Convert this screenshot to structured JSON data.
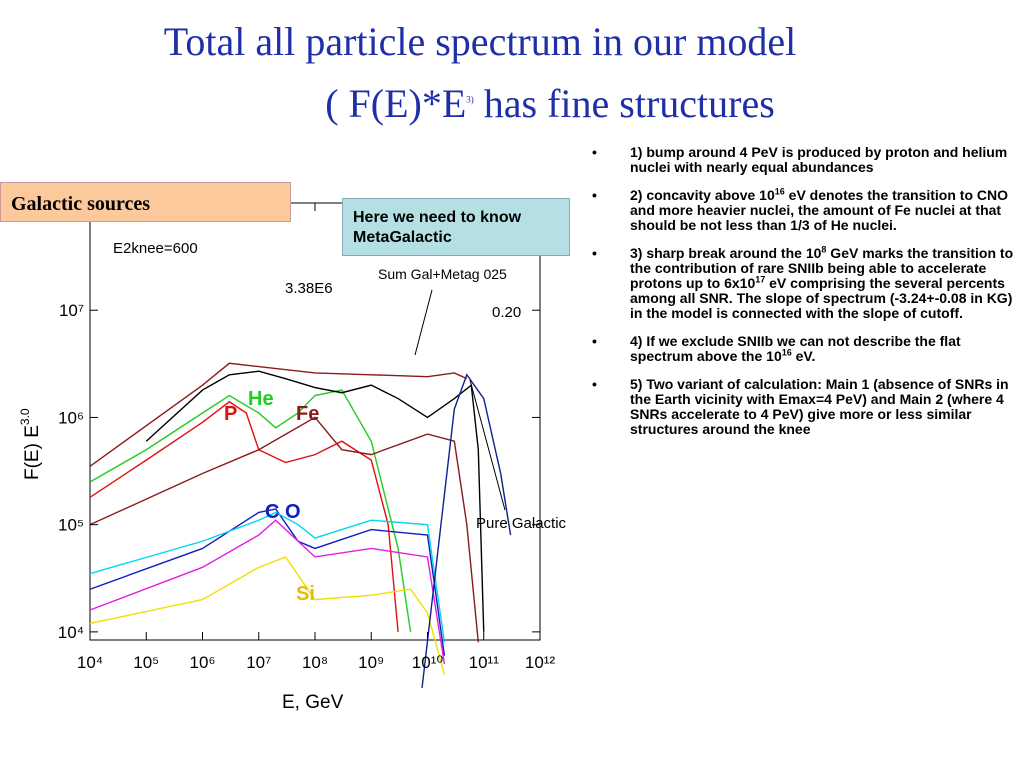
{
  "header": {
    "title_line1": "Total all particle spectrum in our model",
    "title_line2": [
      "( F(E)*E",
      "3)",
      " has fine structures"
    ]
  },
  "callouts": {
    "galactic": "Galactic sources",
    "metagalactic": "Here we need to know MetaGalactic"
  },
  "bullets": [
    [
      "1) bump around 4 PeV  is produced by proton and helium nuclei with nearly equal abundances"
    ],
    [
      "  2) concavity above 10",
      "16",
      " eV denotes the transition to  CNO and more heavier nuclei, the amount of Fe nuclei at that should be not less than 1/3 of He nuclei."
    ],
    [
      "  3) sharp  break around the 10",
      "8",
      " GeV marks the transition to  the contribution of  rare SNIIb being able to accelerate protons up to 6x10",
      "17",
      " eV  comprising  the several percents among all SNR. The slope of spectrum (-3.24+-0.08 in KG) in the model is connected with the slope of cutoff."
    ],
    [
      "4) If we exclude SNIIb  we can not describe the flat spectrum  above the 10",
      "16",
      " eV."
    ],
    [
      "5) Two variant of calculation: Main 1 (absence of SNRs in the Earth vicinity with Emax=4 PeV) and Main 2 (where 4 SNRs accelerate to 4 PeV) give more or less  similar structures around the knee"
    ]
  ],
  "chart_data": {
    "type": "line",
    "xscale": "log",
    "yscale": "log",
    "xlabel": "E, GeV",
    "ylabel": [
      "F(E) E",
      "3.0"
    ],
    "annotations": {
      "e2knee": "E2knee=600",
      "norm": "3.38E6",
      "sum": "Sum Gal+Metag 025",
      "frac": "0.20",
      "pure": "Pure Galactic"
    },
    "xlim": [
      10000,
      1000000000000.0
    ],
    "ylim": [
      8400,
      100000000.0
    ],
    "xticks": [
      {
        "value": 10000.0,
        "label": "10⁴"
      },
      {
        "value": 100000.0,
        "label": "10⁵"
      },
      {
        "value": 1000000.0,
        "label": "10⁶"
      },
      {
        "value": 10000000.0,
        "label": "10⁷"
      },
      {
        "value": 100000000.0,
        "label": "10⁸"
      },
      {
        "value": 1000000000.0,
        "label": "10⁹"
      },
      {
        "value": 10000000000.0,
        "label": "10¹⁰"
      },
      {
        "value": 100000000000.0,
        "label": "10¹¹"
      },
      {
        "value": 1000000000000.0,
        "label": "10¹²"
      }
    ],
    "yticks": [
      {
        "value": 10000.0,
        "label": "10⁴"
      },
      {
        "value": 100000.0,
        "label": "10⁵"
      },
      {
        "value": 1000000.0,
        "label": "10⁶"
      },
      {
        "value": 10000000.0,
        "label": "10⁷"
      }
    ],
    "series": [
      {
        "name": "P",
        "color": "#e01010",
        "x": [
          10000.0,
          100000.0,
          1000000.0,
          3000000.0,
          6000000.0,
          10000000.0,
          30000000.0,
          100000000.0,
          300000000.0,
          1000000000.0,
          2000000000.0,
          3000000000.0
        ],
        "values": [
          180000.0,
          400000.0,
          900000.0,
          1400000.0,
          1100000.0,
          500000.0,
          380000.0,
          450000.0,
          600000.0,
          400000.0,
          100000.0,
          10000.0
        ]
      },
      {
        "name": "He",
        "color": "#22cc22",
        "x": [
          10000.0,
          100000.0,
          1000000.0,
          3000000.0,
          10000000.0,
          20000000.0,
          50000000.0,
          100000000.0,
          300000000.0,
          1000000000.0,
          3000000000.0,
          5000000000.0
        ],
        "values": [
          250000.0,
          500000.0,
          1100000.0,
          1600000.0,
          1100000.0,
          800000.0,
          1100000.0,
          1600000.0,
          1800000.0,
          600000.0,
          60000.0,
          10000.0
        ]
      },
      {
        "name": "Fe",
        "color": "#8b1a1a",
        "x": [
          10000.0,
          1000000.0,
          10000000.0,
          100000000.0,
          300000000.0,
          1000000000.0,
          10000000000.0,
          30000000000.0,
          50000000000.0,
          80000000000.0
        ],
        "values": [
          100000.0,
          300000.0,
          500000.0,
          1000000.0,
          500000.0,
          450000.0,
          700000.0,
          600000.0,
          100000.0,
          8000.0
        ]
      },
      {
        "name": "C O",
        "color": "#1020c0",
        "x": [
          10000.0,
          1000000.0,
          10000000.0,
          20000000.0,
          50000000.0,
          100000000.0,
          1000000000.0,
          10000000000.0,
          20000000000.0
        ],
        "values": [
          25000.0,
          60000.0,
          130000.0,
          140000.0,
          70000.0,
          60000.0,
          90000.0,
          80000.0,
          6000.0
        ]
      },
      {
        "color": "#00d8f0",
        "x": [
          10000.0,
          1000000.0,
          10000000.0,
          20000000.0,
          50000000.0,
          100000000.0,
          1000000000.0,
          10000000000.0,
          20000000000.0
        ],
        "values": [
          35000.0,
          70000.0,
          110000.0,
          130000.0,
          100000.0,
          75000.0,
          110000.0,
          100000.0,
          8000.0
        ]
      },
      {
        "color": "#e020e0",
        "x": [
          10000.0,
          1000000.0,
          10000000.0,
          20000000.0,
          50000000.0,
          100000000.0,
          1000000000.0,
          10000000000.0,
          20000000000.0
        ],
        "values": [
          16000.0,
          40000.0,
          80000.0,
          110000.0,
          70000.0,
          50000.0,
          60000.0,
          50000.0,
          5000.0
        ]
      },
      {
        "name": "Si",
        "color": "#f0e000",
        "x": [
          10000.0,
          1000000.0,
          10000000.0,
          30000000.0,
          100000000.0,
          1000000000.0,
          5000000000.0,
          10000000000.0,
          20000000000.0
        ],
        "values": [
          12000.0,
          20000.0,
          40000.0,
          50000.0,
          20000.0,
          22000.0,
          25000.0,
          15000.0,
          4000.0
        ]
      },
      {
        "color": "#000000",
        "x": [
          100000.0,
          1000000.0,
          3000000.0,
          10000000.0,
          30000000.0,
          100000000.0,
          300000000.0,
          1000000000.0,
          3000000000.0,
          10000000000.0,
          30000000000.0,
          60000000000.0,
          80000000000.0,
          100000000000.0
        ],
        "values": [
          600000.0,
          1800000.0,
          2500000.0,
          2700000.0,
          2300000.0,
          1900000.0,
          1700000.0,
          2000000.0,
          1500000.0,
          1000000.0,
          1500000.0,
          2000000.0,
          500000.0,
          10000.0
        ]
      },
      {
        "color": "#8b1a1a",
        "x": [
          10000.0,
          1000000.0,
          3000000.0,
          100000000.0,
          1000000000.0,
          10000000000.0,
          30000000000.0,
          50000000000.0
        ],
        "values": [
          350000.0,
          2000000.0,
          3200000.0,
          2600000.0,
          2500000.0,
          2400000.0,
          2600000.0,
          2300000.0
        ]
      },
      {
        "color": "#102090",
        "x": [
          8000000000.0,
          30000000000.0,
          50000000000.0,
          100000000000.0,
          200000000000.0,
          300000000000.0
        ],
        "values": [
          3000.0,
          1200000.0,
          2500000.0,
          1500000.0,
          300000.0,
          80000.0
        ]
      }
    ]
  }
}
